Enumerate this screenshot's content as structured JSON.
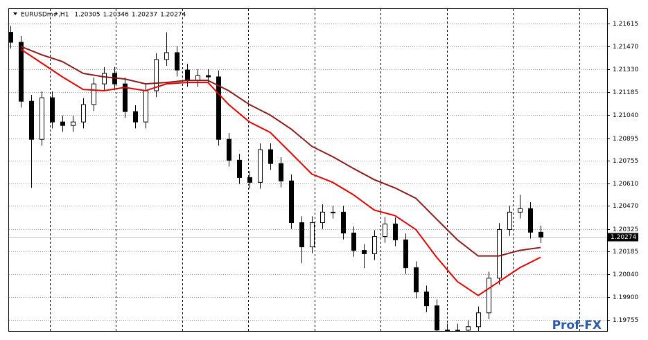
{
  "chart_data": {
    "type": "candlestick",
    "symbol": "EURUSDm#,H1",
    "header_values": [
      1.20305,
      1.20346,
      1.20237,
      1.20274
    ],
    "open": [
      1.2156,
      1.21497,
      1.21127,
      1.20888,
      1.21149,
      1.20997,
      1.20975,
      1.20997,
      1.21106,
      1.21236,
      1.21302,
      1.21236,
      1.21062,
      1.20997,
      1.21193,
      1.21389,
      1.21432,
      1.21323,
      1.21258,
      1.21288,
      1.2128,
      1.20888,
      1.20757,
      1.20648,
      1.20618,
      1.20823,
      1.20736,
      1.20627,
      1.20365,
      1.20213,
      1.20365,
      1.20431,
      1.20431,
      1.203,
      1.20191,
      1.2017,
      1.20278,
      1.20357,
      1.20257,
      1.20082,
      1.1993,
      1.19843,
      1.19691,
      1.1969,
      1.1969,
      1.19712,
      1.19799,
      1.20017,
      1.20322,
      1.20431,
      1.20453,
      1.20305
    ],
    "high": [
      1.216,
      1.21537,
      1.21167,
      1.21189,
      1.21189,
      1.21037,
      1.21037,
      1.21146,
      1.21276,
      1.21342,
      1.21342,
      1.21276,
      1.21102,
      1.21233,
      1.21429,
      1.2156,
      1.21472,
      1.21363,
      1.21328,
      1.21328,
      1.2132,
      1.20928,
      1.20797,
      1.20688,
      1.20863,
      1.20863,
      1.20776,
      1.20667,
      1.20405,
      1.20405,
      1.2048,
      1.20471,
      1.20471,
      1.2034,
      1.20231,
      1.20318,
      1.204,
      1.20397,
      1.20297,
      1.20122,
      1.1997,
      1.19883,
      1.19731,
      1.1973,
      1.19752,
      1.19839,
      1.20057,
      1.20362,
      1.20471,
      1.2054,
      1.20493,
      1.20346
    ],
    "low": [
      1.21457,
      1.21087,
      1.20583,
      1.20848,
      1.20957,
      1.20935,
      1.20935,
      1.20957,
      1.21066,
      1.21196,
      1.21196,
      1.21022,
      1.20957,
      1.20957,
      1.21153,
      1.21349,
      1.21283,
      1.21218,
      1.21218,
      1.2124,
      1.20848,
      1.20717,
      1.20608,
      1.20578,
      1.20578,
      1.20696,
      1.20587,
      1.20325,
      1.2011,
      1.20173,
      1.20325,
      1.20391,
      1.2026,
      1.20151,
      1.2008,
      1.2013,
      1.20238,
      1.20217,
      1.20042,
      1.1989,
      1.19803,
      1.19651,
      1.1965,
      1.1965,
      1.1965,
      1.19672,
      1.19759,
      1.19977,
      1.20282,
      1.20391,
      1.20265,
      1.20237
    ],
    "close": [
      1.21497,
      1.21127,
      1.20888,
      1.21149,
      1.20997,
      1.20975,
      1.20997,
      1.21106,
      1.21236,
      1.21302,
      1.21236,
      1.21062,
      1.20997,
      1.21193,
      1.21389,
      1.21432,
      1.21323,
      1.21258,
      1.21288,
      1.2128,
      1.20888,
      1.20757,
      1.20648,
      1.20618,
      1.20823,
      1.20736,
      1.20627,
      1.20365,
      1.20213,
      1.20365,
      1.20431,
      1.20431,
      1.203,
      1.20191,
      1.2017,
      1.20278,
      1.20357,
      1.20257,
      1.20082,
      1.1993,
      1.19843,
      1.19691,
      1.1969,
      1.1969,
      1.19712,
      1.19799,
      1.20017,
      1.20322,
      1.20431,
      1.20453,
      1.20305,
      1.20274
    ],
    "up_color": "#ffffff",
    "down_color": "#000000",
    "moving_averages": [
      {
        "color": "#8b1a1a",
        "x": [
          1,
          3,
          5,
          7,
          9,
          11,
          13,
          15,
          17,
          19,
          21,
          23,
          25,
          27,
          29,
          31,
          33,
          35,
          37,
          39,
          41,
          43,
          45,
          47,
          49,
          51
        ],
        "values": [
          1.21471,
          1.21419,
          1.21376,
          1.21302,
          1.2128,
          1.21267,
          1.21236,
          1.21245,
          1.21258,
          1.21258,
          1.21193,
          1.21106,
          1.2104,
          1.20953,
          1.20844,
          1.20779,
          1.20705,
          1.20635,
          1.20583,
          1.20518,
          1.20387,
          1.20257,
          1.20156,
          1.20156,
          1.20191,
          1.20209
        ]
      },
      {
        "color": "#e00000",
        "x": [
          1,
          3,
          5,
          7,
          9,
          11,
          13,
          15,
          17,
          19,
          21,
          23,
          25,
          27,
          29,
          31,
          33,
          35,
          37,
          39,
          41,
          43,
          45,
          47,
          49,
          51
        ],
        "values": [
          1.21454,
          1.21367,
          1.2128,
          1.21201,
          1.21193,
          1.21214,
          1.21193,
          1.21236,
          1.21245,
          1.21245,
          1.21106,
          1.20997,
          1.20931,
          1.20801,
          1.2067,
          1.20618,
          1.2054,
          1.20444,
          1.20409,
          1.20322,
          1.20148,
          1.19995,
          1.19908,
          1.19995,
          1.20082,
          1.20148
        ]
      }
    ],
    "ylim": [
      1.19685,
      1.21706
    ],
    "yticks": [
      1.21615,
      {
        "value": 1.2147,
        "label": "1.21470"
      },
      {
        "value": 1.2133,
        "label": "1.21330"
      },
      1.21185,
      {
        "value": 1.2104,
        "label": "1.21040"
      },
      1.20895,
      1.20755,
      {
        "value": 1.2061,
        "label": "1.20610"
      },
      {
        "value": 1.2047,
        "label": "1.20470"
      },
      1.20325,
      1.20185,
      {
        "value": 1.2004,
        "label": "1.20040"
      },
      {
        "value": 1.199,
        "label": "1.19900"
      },
      1.19755
    ],
    "grid": true,
    "last_price": 1.20274
  },
  "watermark": "Prof-FX"
}
